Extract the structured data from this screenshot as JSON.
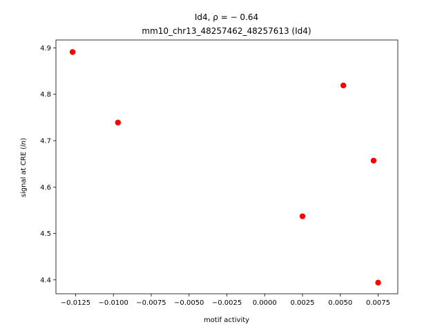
{
  "chart_data": {
    "type": "scatter",
    "title_line1": "Id4, ρ = − 0.64",
    "title_line2": "mm10_chr13_48257462_48257613 (Id4)",
    "xlabel": "motif activity",
    "ylabel_prefix": "signal at CRE (",
    "ylabel_italic": "ln",
    "ylabel_suffix": ")",
    "xlim": [
      -0.0138,
      0.0088
    ],
    "ylim": [
      4.37,
      4.917
    ],
    "x_ticks": [
      -0.0125,
      -0.01,
      -0.0075,
      -0.005,
      -0.0025,
      0.0,
      0.0025,
      0.005,
      0.0075
    ],
    "x_tick_labels": [
      "−0.0125",
      "−0.0100",
      "−0.0075",
      "−0.0050",
      "−0.0025",
      "0.0000",
      "0.0025",
      "0.0050",
      "0.0075"
    ],
    "y_ticks": [
      4.4,
      4.5,
      4.6,
      4.7,
      4.8,
      4.9
    ],
    "y_tick_labels": [
      "4.4",
      "4.5",
      "4.6",
      "4.7",
      "4.8",
      "4.9"
    ],
    "points": [
      {
        "x": -0.0127,
        "y": 4.891
      },
      {
        "x": -0.0097,
        "y": 4.739
      },
      {
        "x": 0.0025,
        "y": 4.537
      },
      {
        "x": 0.0052,
        "y": 4.819
      },
      {
        "x": 0.0072,
        "y": 4.657
      },
      {
        "x": 0.0075,
        "y": 4.394
      }
    ],
    "marker_color": "#ff0000",
    "grid": false
  }
}
